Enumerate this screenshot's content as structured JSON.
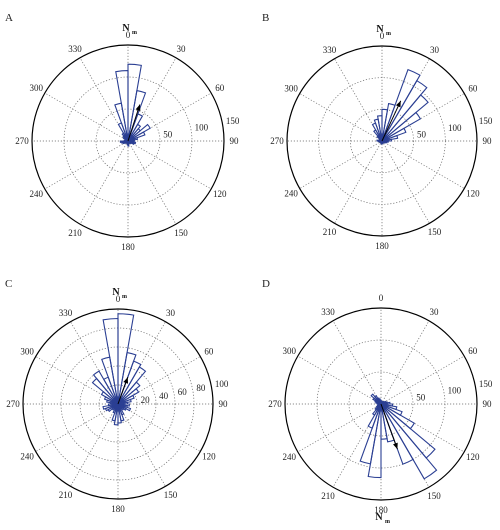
{
  "chart_data": [
    {
      "type": "polar-histogram",
      "panel_label": "A",
      "north_label": "N",
      "north_sub": "m",
      "angle_labels": [
        "0",
        "30",
        "60",
        "90",
        "120",
        "150",
        "180",
        "210",
        "240",
        "270",
        "300",
        "330"
      ],
      "radial_ticks": [
        {
          "value": 50,
          "label": "50"
        },
        {
          "value": 100,
          "label": "100"
        },
        {
          "value": 150,
          "label": "150"
        }
      ],
      "rlim": [
        0,
        150
      ],
      "bins_deg": [
        0,
        10,
        20,
        30,
        40,
        50,
        60,
        70,
        80,
        90,
        100,
        110,
        120,
        130,
        140,
        150,
        160,
        170,
        180,
        190,
        200,
        210,
        220,
        230,
        240,
        250,
        260,
        270,
        280,
        290,
        300,
        310,
        320,
        330,
        340,
        350
      ],
      "values": [
        120,
        80,
        45,
        30,
        25,
        40,
        28,
        15,
        10,
        8,
        12,
        10,
        6,
        5,
        4,
        3,
        2,
        8,
        6,
        4,
        2,
        3,
        4,
        6,
        8,
        10,
        12,
        6,
        5,
        4,
        8,
        10,
        14,
        30,
        60,
        110
      ],
      "mean_direction_deg": 18,
      "mean_length": 60
    },
    {
      "type": "polar-histogram",
      "panel_label": "B",
      "north_label": "N",
      "north_sub": "m",
      "angle_labels": [
        "0",
        "30",
        "60",
        "90",
        "120",
        "150",
        "180",
        "210",
        "240",
        "270",
        "300",
        "330"
      ],
      "radial_ticks": [
        {
          "value": 50,
          "label": "50"
        },
        {
          "value": 100,
          "label": "100"
        },
        {
          "value": 150,
          "label": "150"
        }
      ],
      "rlim": [
        0,
        150
      ],
      "bins_deg": [
        0,
        10,
        20,
        30,
        40,
        50,
        60,
        70,
        80,
        90,
        100,
        110,
        120,
        130,
        140,
        150,
        160,
        170,
        180,
        190,
        200,
        210,
        220,
        230,
        240,
        250,
        260,
        270,
        280,
        290,
        300,
        310,
        320,
        330,
        340,
        350
      ],
      "values": [
        50,
        60,
        120,
        110,
        95,
        70,
        40,
        25,
        15,
        10,
        8,
        6,
        5,
        4,
        3,
        2,
        3,
        4,
        5,
        3,
        2,
        3,
        4,
        3,
        2,
        4,
        6,
        8,
        4,
        3,
        5,
        10,
        20,
        30,
        35,
        40
      ],
      "mean_direction_deg": 25,
      "mean_length": 70
    },
    {
      "type": "polar-histogram",
      "panel_label": "C",
      "north_label": "N",
      "north_sub": "m",
      "angle_labels": [
        "0",
        "30",
        "60",
        "90",
        "120",
        "150",
        "180",
        "210",
        "240",
        "270",
        "300",
        "330"
      ],
      "radial_ticks": [
        {
          "value": 20,
          "label": "20"
        },
        {
          "value": 40,
          "label": "40"
        },
        {
          "value": 60,
          "label": "60"
        },
        {
          "value": 80,
          "label": "80"
        },
        {
          "value": 100,
          "label": "100"
        }
      ],
      "rlim": [
        0,
        100
      ],
      "bins_deg": [
        0,
        10,
        20,
        30,
        40,
        50,
        60,
        70,
        80,
        90,
        100,
        110,
        120,
        130,
        140,
        150,
        160,
        170,
        180,
        190,
        200,
        210,
        220,
        230,
        240,
        250,
        260,
        270,
        280,
        290,
        300,
        310,
        320,
        330,
        340,
        350
      ],
      "values": [
        95,
        55,
        48,
        45,
        30,
        25,
        18,
        14,
        10,
        12,
        10,
        14,
        10,
        8,
        6,
        12,
        18,
        20,
        22,
        18,
        10,
        6,
        8,
        12,
        14,
        16,
        10,
        8,
        12,
        15,
        20,
        35,
        40,
        30,
        50,
        90
      ],
      "mean_direction_deg": 20,
      "mean_length": 30
    },
    {
      "type": "polar-histogram",
      "panel_label": "D",
      "north_label": "N",
      "north_sub": "m",
      "angle_labels": [
        "0",
        "30",
        "60",
        "90",
        "120",
        "150",
        "180",
        "210",
        "240",
        "270",
        "300",
        "330"
      ],
      "radial_ticks": [
        {
          "value": 50,
          "label": "50"
        },
        {
          "value": 100,
          "label": "100"
        },
        {
          "value": 150,
          "label": "150"
        }
      ],
      "rlim": [
        0,
        150
      ],
      "bins_deg": [
        0,
        10,
        20,
        30,
        40,
        50,
        60,
        70,
        80,
        90,
        100,
        110,
        120,
        130,
        140,
        150,
        160,
        170,
        180,
        190,
        200,
        210,
        220,
        230,
        240,
        250,
        260,
        270,
        280,
        290,
        300,
        310,
        320,
        330,
        340,
        350
      ],
      "values": [
        5,
        4,
        3,
        4,
        5,
        6,
        8,
        10,
        14,
        18,
        25,
        35,
        60,
        110,
        135,
        100,
        60,
        55,
        115,
        95,
        40,
        20,
        12,
        8,
        6,
        5,
        4,
        6,
        8,
        10,
        14,
        20,
        15,
        10,
        8,
        6
      ],
      "mean_direction_deg": 160,
      "mean_length": 75,
      "north_position": "bottom"
    }
  ],
  "style": {
    "bar_color": "#2b3f93",
    "grid_color": "#666666",
    "axis_color": "#000000",
    "arrow_color": "#000000"
  }
}
